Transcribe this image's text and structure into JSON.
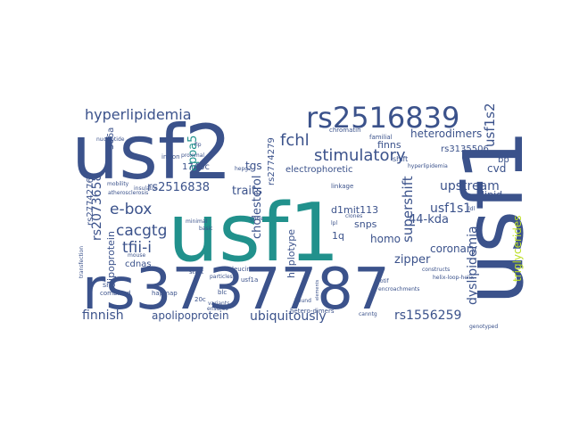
{
  "words": [
    {
      "text": "usf2",
      "color": "#3b528b"
    },
    {
      "text": "usf1",
      "color": "#21918c"
    },
    {
      "text": "usf1",
      "color": "#3b528b"
    },
    {
      "text": "rs3737787",
      "color": "#3b528b"
    },
    {
      "text": "rs2516839",
      "color": "#3b528b"
    },
    {
      "text": "hyperlipidemia",
      "color": "#3b528b"
    },
    {
      "text": "stimulatory",
      "color": "#3b528b"
    },
    {
      "text": "fchl",
      "color": "#3b528b"
    },
    {
      "text": "rs2516838",
      "color": "#3b528b"
    },
    {
      "text": "e-box",
      "color": "#3b528b"
    },
    {
      "text": "cacgtg",
      "color": "#3b528b"
    },
    {
      "text": "rs2073658",
      "color": "#3b528b"
    },
    {
      "text": "tfii-i",
      "color": "#3b528b"
    },
    {
      "text": "lipoprotein",
      "color": "#3b528b"
    },
    {
      "text": "traits",
      "color": "#3b528b"
    },
    {
      "text": "tgs",
      "color": "#3b528b"
    },
    {
      "text": "upstream",
      "color": "#3b528b"
    },
    {
      "text": "usf1s2",
      "color": "#3b528b"
    },
    {
      "text": "usf1s1",
      "color": "#3b528b"
    },
    {
      "text": "supershift",
      "color": "#3b528b"
    },
    {
      "text": "heterodimers",
      "color": "#3b528b"
    },
    {
      "text": "rs3135506",
      "color": "#3b528b"
    },
    {
      "text": "cvd",
      "color": "#3b528b"
    },
    {
      "text": "44-kda",
      "color": "#3b528b"
    },
    {
      "text": "dyslipidemia",
      "color": "#3b528b"
    },
    {
      "text": "triglycerides",
      "color": "#bddf26"
    },
    {
      "text": "coronary",
      "color": "#3b528b"
    },
    {
      "text": "zipper",
      "color": "#3b528b"
    },
    {
      "text": "homo",
      "color": "#3b528b"
    },
    {
      "text": "snps",
      "color": "#3b528b"
    },
    {
      "text": "1q",
      "color": "#3b528b"
    },
    {
      "text": "d1mit113",
      "color": "#3b528b"
    },
    {
      "text": "haplotype",
      "color": "#3b528b"
    },
    {
      "text": "cholesterol",
      "color": "#3b528b"
    },
    {
      "text": "apoa5",
      "color": "#21918c"
    },
    {
      "text": "1748c",
      "color": "#3b528b"
    },
    {
      "text": "rs2774276",
      "color": "#3b528b"
    },
    {
      "text": "rs2774279",
      "color": "#3b528b"
    },
    {
      "text": "306a",
      "color": "#3b528b"
    },
    {
      "text": "electrophoretic",
      "color": "#3b528b"
    },
    {
      "text": "finns",
      "color": "#3b528b"
    },
    {
      "text": "lipid",
      "color": "#3b528b"
    },
    {
      "text": "bp",
      "color": "#3b528b"
    },
    {
      "text": "finnish",
      "color": "#3b528b"
    },
    {
      "text": "apolipoprotein",
      "color": "#3b528b"
    },
    {
      "text": "ubiquitously",
      "color": "#3b528b"
    },
    {
      "text": "rs1556259",
      "color": "#3b528b"
    },
    {
      "text": "cdnas",
      "color": "#3b528b"
    },
    {
      "text": "snp",
      "color": "#3b528b"
    },
    {
      "text": "combined",
      "color": "#3b528b"
    },
    {
      "text": "hapmap",
      "color": "#3b528b"
    },
    {
      "text": "leucine",
      "color": "#3b528b"
    },
    {
      "text": "usf1a",
      "color": "#3b528b"
    },
    {
      "text": "start",
      "color": "#3b528b"
    },
    {
      "text": "blc",
      "color": "#3b528b"
    },
    {
      "text": "hetero-dimers",
      "color": "#3b528b"
    },
    {
      "text": "genotyped",
      "color": "#3b528b"
    },
    {
      "text": "helix-loop-helix",
      "color": "#3b528b"
    },
    {
      "text": "familial",
      "color": "#3b528b"
    },
    {
      "text": "chromatin",
      "color": "#3b528b"
    },
    {
      "text": "linkage",
      "color": "#3b528b"
    },
    {
      "text": "clones",
      "color": "#3b528b"
    },
    {
      "text": "insulator",
      "color": "#3b528b"
    },
    {
      "text": "atherosclerosis",
      "color": "#3b528b"
    },
    {
      "text": "mobility",
      "color": "#3b528b"
    },
    {
      "text": "minimal",
      "color": "#3b528b"
    },
    {
      "text": "basic",
      "color": "#3b528b"
    },
    {
      "text": "proximal",
      "color": "#3b528b"
    },
    {
      "text": "intron",
      "color": "#3b528b"
    },
    {
      "text": "hepg2",
      "color": "#3b528b"
    },
    {
      "text": "lpl",
      "color": "#3b528b"
    },
    {
      "text": "fip",
      "color": "#3b528b"
    },
    {
      "text": "bound",
      "color": "#3b528b"
    },
    {
      "text": "shift",
      "color": "#3b528b"
    },
    {
      "text": "motif",
      "color": "#3b528b"
    },
    {
      "text": "encroachments",
      "color": "#3b528b"
    },
    {
      "text": "constructs",
      "color": "#3b528b"
    },
    {
      "text": "canntg",
      "color": "#3b528b"
    },
    {
      "text": "elements",
      "color": "#3b528b"
    },
    {
      "text": "transfection",
      "color": "#3b528b"
    },
    {
      "text": "mouse",
      "color": "#3b528b"
    },
    {
      "text": "ldl",
      "color": "#3b528b"
    },
    {
      "text": "gene",
      "color": "#3b528b"
    },
    {
      "text": "20c",
      "color": "#3b528b"
    },
    {
      "text": "particles",
      "color": "#3b528b"
    },
    {
      "text": "variants",
      "color": "#3b528b"
    },
    {
      "text": "nucleotide",
      "color": "#3b528b"
    },
    {
      "text": "hyperlipidemia",
      "color": "#3b528b"
    },
    {
      "text": "ensures",
      "color": "#3b528b"
    }
  ]
}
